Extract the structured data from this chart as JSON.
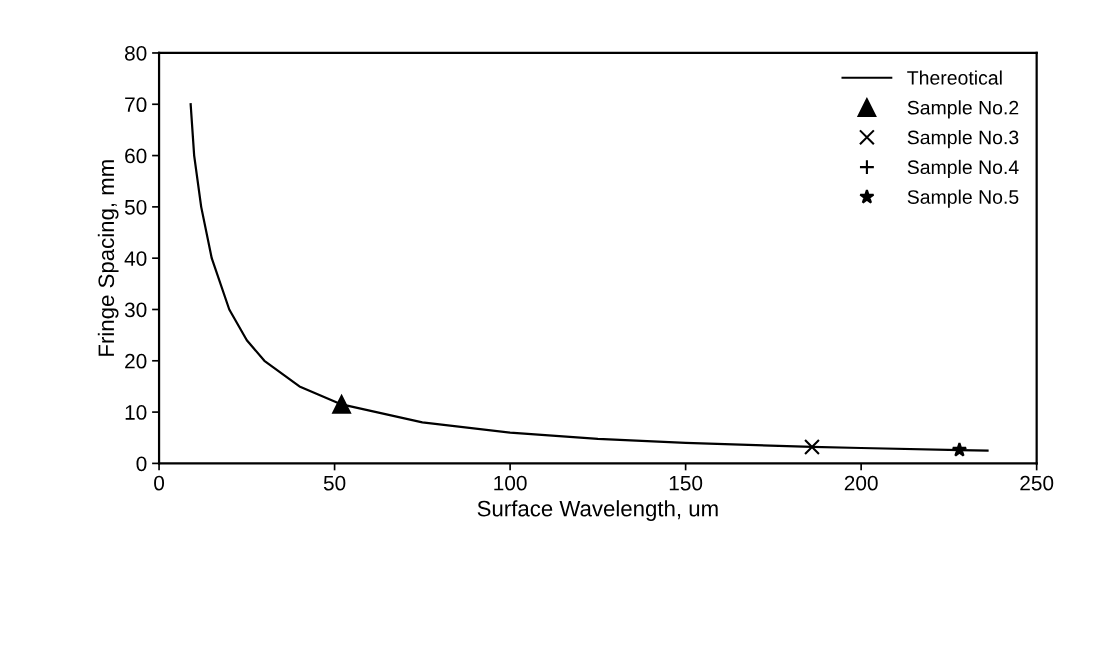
{
  "chart_data": {
    "type": "line",
    "xlabel": "Surface Wavelength, um",
    "ylabel": "Fringe Spacing, mm",
    "xlim": [
      0,
      250
    ],
    "xticks": [
      0,
      50,
      100,
      150,
      200,
      250
    ],
    "ylim": [
      0,
      80
    ],
    "yticks": [
      0,
      10,
      20,
      30,
      40,
      50,
      60,
      70,
      80
    ],
    "grid": false,
    "legend": "top right",
    "series": [
      {
        "name": "Thereotical",
        "color": "#000000",
        "marker": "none",
        "line_style": "solid",
        "x": [
          9,
          10,
          12,
          15,
          20,
          25,
          30,
          40,
          52,
          75,
          100,
          125,
          150,
          186,
          200,
          228,
          236
        ],
        "values": [
          70,
          60,
          50,
          40,
          30,
          24,
          20,
          15,
          11.5,
          8,
          6,
          4.8,
          4,
          3.2,
          3,
          2.6,
          2.5
        ]
      },
      {
        "name": "Sample No.2",
        "type": "scatter",
        "color": "#000000",
        "marker": "triangle",
        "x": [
          52
        ],
        "values": [
          11.5
        ]
      },
      {
        "name": "Sample No.3",
        "type": "scatter",
        "color": "#000000",
        "marker": "cross",
        "x": [
          186
        ],
        "values": [
          3.2
        ]
      },
      {
        "name": "Sample No.4",
        "type": "scatter",
        "color": "#000000",
        "marker": "plus"
      },
      {
        "name": "Sample No.5",
        "type": "scatter",
        "color": "#000000",
        "marker": "star",
        "x": [
          228
        ],
        "values": [
          2.6
        ]
      }
    ]
  }
}
